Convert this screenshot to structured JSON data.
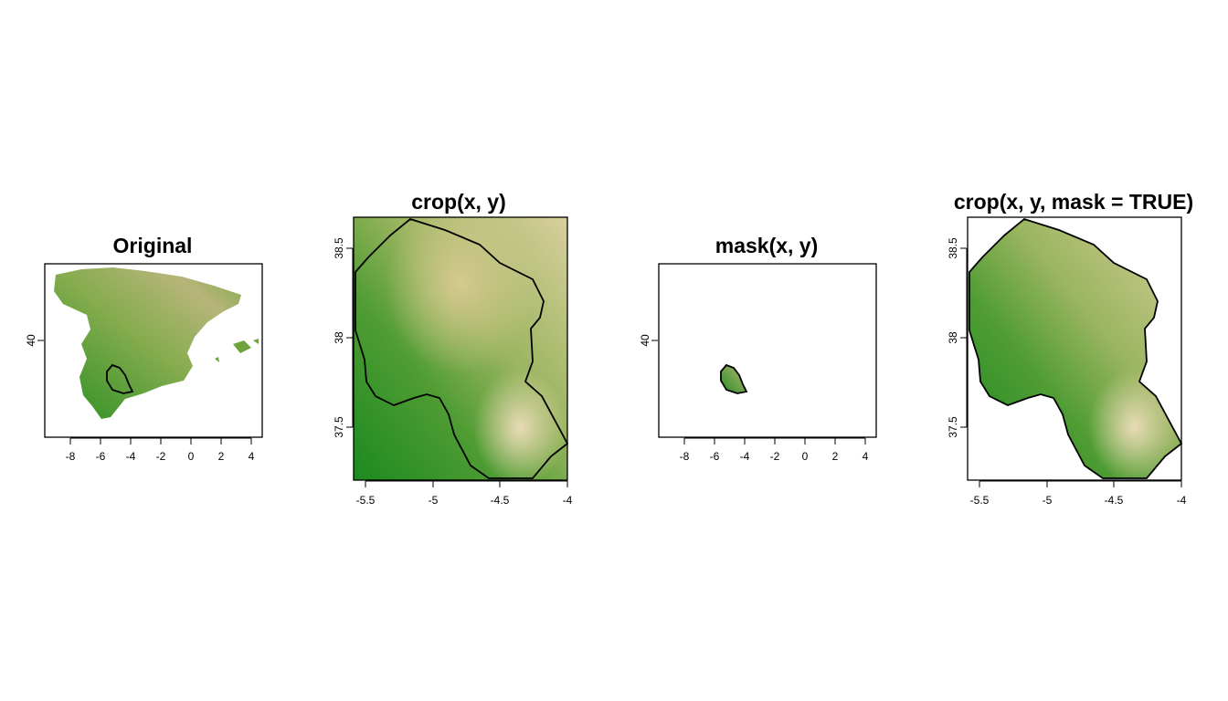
{
  "panels": [
    {
      "title": "Original",
      "x_ticks": [
        "-8",
        "-6",
        "-4",
        "-2",
        "0",
        "2",
        "4"
      ],
      "y_ticks": [
        "40"
      ]
    },
    {
      "title": "crop(x, y)",
      "x_ticks": [
        "-5.5",
        "-5",
        "-4.5",
        "-4"
      ],
      "y_ticks": [
        "37.5",
        "38",
        "38.5"
      ]
    },
    {
      "title": "mask(x, y)",
      "x_ticks": [
        "-8",
        "-6",
        "-4",
        "-2",
        "0",
        "2",
        "4"
      ],
      "y_ticks": [
        "40"
      ]
    },
    {
      "title": "crop(x, y, mask = TRUE)",
      "x_ticks": [
        "-5.5",
        "-5",
        "-4.5",
        "-4"
      ],
      "y_ticks": [
        "37.5",
        "38",
        "38.5"
      ]
    }
  ],
  "colors": {
    "low": "#1f8a1f",
    "mid": "#7fae4a",
    "high": "#e8d9b0",
    "border": "#000000"
  }
}
